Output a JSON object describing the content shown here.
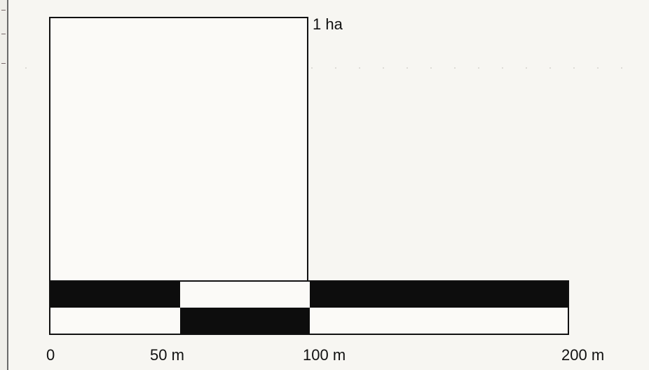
{
  "hectare_label": "1 ha",
  "scale": {
    "unit": "m",
    "tick_labels": [
      "0",
      "50 m",
      "100 m",
      "200 m"
    ],
    "ticks_m": [
      0,
      50,
      100,
      200
    ],
    "row_top_pattern": [
      "black",
      "white",
      "black"
    ],
    "row_bottom_pattern": [
      "white",
      "black",
      "white"
    ]
  },
  "colors": {
    "ink": "#111111",
    "fill": "#0d0d0d",
    "paper": "#f7f6f2"
  }
}
